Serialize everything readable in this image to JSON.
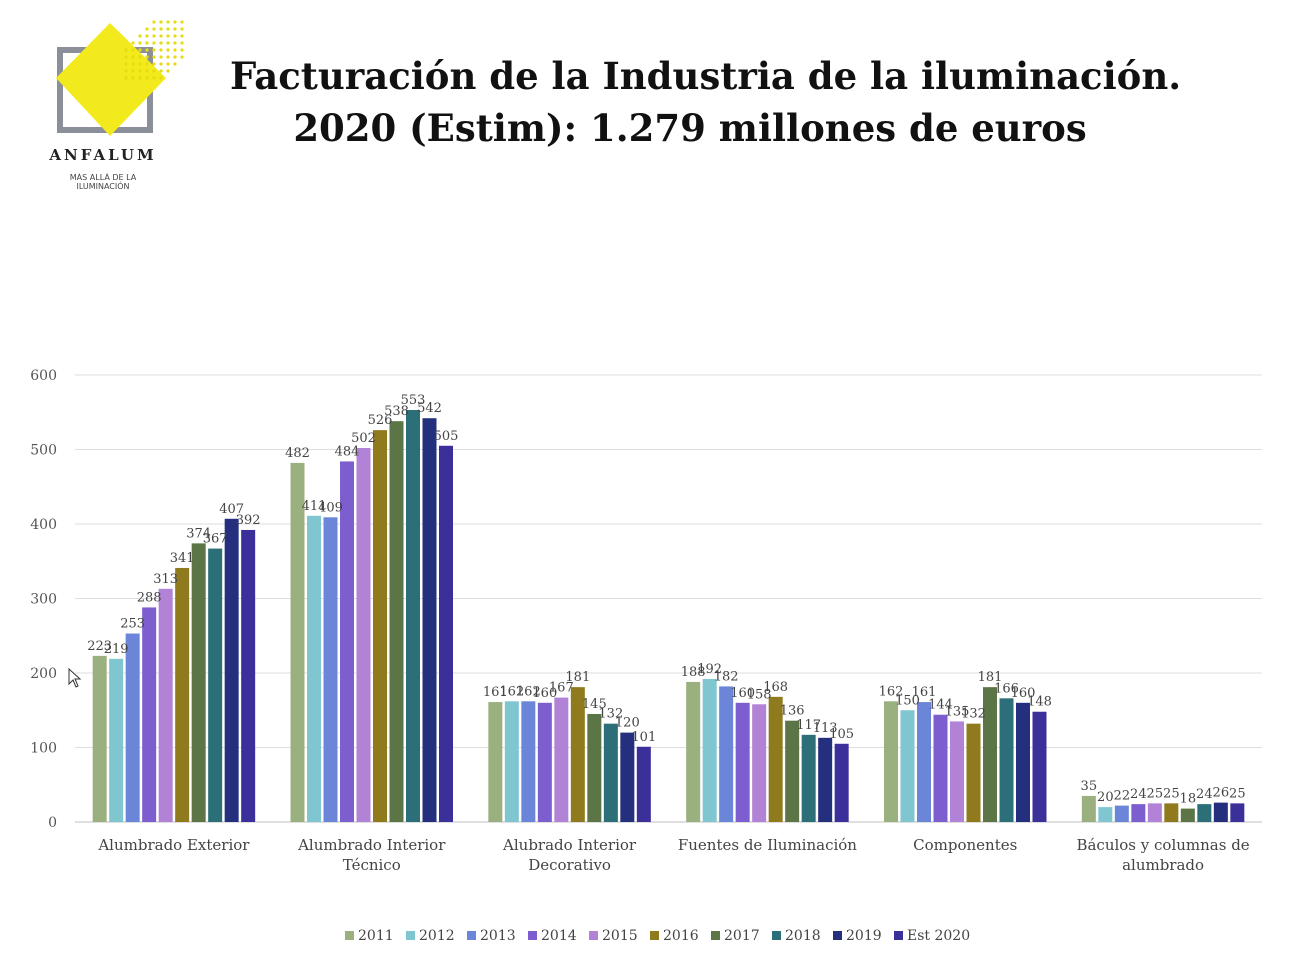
{
  "logo": {
    "brand": "ANFALUM",
    "tagline": "MÁS ALLÁ DE LA ILUMINACIÓN"
  },
  "title": {
    "line1": "Facturación de la Industria de la iluminación.",
    "line2": "2020 (Estim): 1.279 millones de euros"
  },
  "colors": [
    "#9bb07f",
    "#7fc6d0",
    "#6b86d8",
    "#7d5ecf",
    "#b182d6",
    "#8f7a1e",
    "#5b7546",
    "#2c6f78",
    "#24307e",
    "#3b2f9a"
  ],
  "chart_data": {
    "type": "bar",
    "title": "Facturación de la Industria de la iluminación. 2020 (Estim): 1.279 millones de euros",
    "xlabel": "",
    "ylabel": "",
    "ylim": [
      0,
      600
    ],
    "yticks": [
      0,
      100,
      200,
      300,
      400,
      500,
      600
    ],
    "grid": true,
    "legend_position": "bottom",
    "categories": [
      [
        "Alumbrado Exterior"
      ],
      [
        "Alumbrado Interior",
        "Técnico"
      ],
      [
        "Alubrado Interior",
        "Decorativo"
      ],
      [
        "Fuentes de Iluminación"
      ],
      [
        "Componentes"
      ],
      [
        "Báculos y columnas de",
        "alumbrado"
      ]
    ],
    "series": [
      {
        "name": "2011",
        "values": [
          223,
          482,
          161,
          188,
          162,
          35
        ]
      },
      {
        "name": "2012",
        "values": [
          219,
          411,
          162,
          192,
          150,
          20
        ]
      },
      {
        "name": "2013",
        "values": [
          253,
          409,
          162,
          182,
          161,
          22
        ]
      },
      {
        "name": "2014",
        "values": [
          288,
          484,
          160,
          160,
          144,
          24
        ]
      },
      {
        "name": "2015",
        "values": [
          313,
          502,
          167,
          158,
          135,
          25
        ]
      },
      {
        "name": "2016",
        "values": [
          341,
          526,
          181,
          168,
          132,
          25
        ]
      },
      {
        "name": "2017",
        "values": [
          374,
          538,
          145,
          136,
          181,
          18
        ]
      },
      {
        "name": "2018",
        "values": [
          367,
          553,
          132,
          117,
          166,
          24
        ]
      },
      {
        "name": "2019",
        "values": [
          407,
          542,
          120,
          113,
          160,
          26
        ]
      },
      {
        "name": "Est 2020",
        "values": [
          392,
          505,
          101,
          105,
          148,
          25
        ]
      }
    ]
  }
}
